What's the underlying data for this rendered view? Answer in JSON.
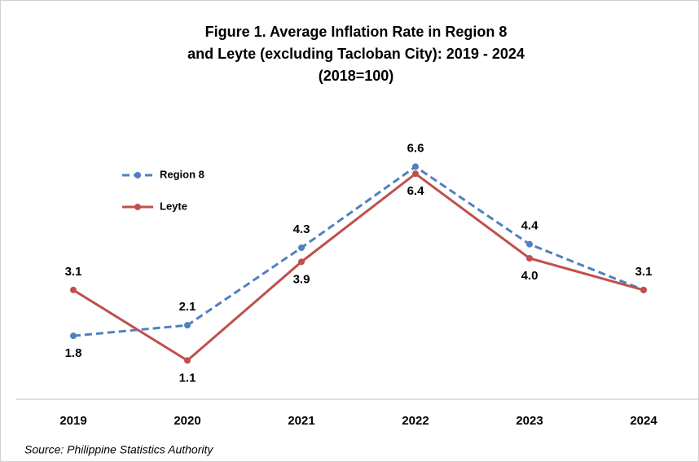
{
  "chart_data": {
    "type": "line",
    "title": [
      "Figure 1. Average Inflation Rate in Region 8",
      "and Leyte (excluding Tacloban City): 2019 - 2024",
      "(2018=100)"
    ],
    "categories": [
      "2019",
      "2020",
      "2021",
      "2022",
      "2023",
      "2024"
    ],
    "series": [
      {
        "name": "Region 8",
        "color": "#4f81bd",
        "dashed": true,
        "values": [
          1.8,
          2.1,
          4.3,
          6.6,
          4.4,
          3.1
        ],
        "value_labels": [
          "1.8",
          "2.1",
          "4.3",
          "6.6",
          "4.4",
          "3.1"
        ]
      },
      {
        "name": "Leyte",
        "color": "#c0504d",
        "dashed": false,
        "values": [
          3.1,
          1.1,
          3.9,
          6.4,
          4.0,
          3.1
        ],
        "value_labels": [
          "3.1",
          "1.1",
          "3.9",
          "6.4",
          "4.0",
          null
        ]
      }
    ],
    "ylim": [
      0,
      8
    ],
    "source": "Source: Philippine Statistics Authority"
  }
}
